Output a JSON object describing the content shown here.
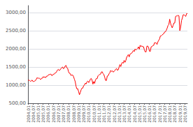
{
  "chart_data": {
    "type": "line",
    "categories": [
      "2004,01",
      null,
      null,
      null,
      null,
      null,
      "2004,07",
      null,
      null,
      null,
      null,
      null,
      "2005,01",
      null,
      null,
      null,
      null,
      null,
      "2005,07",
      null,
      null,
      null,
      null,
      null,
      "2006,01",
      null,
      null,
      null,
      null,
      null,
      "2006,07",
      null,
      null,
      null,
      null,
      null,
      "2007,01",
      null,
      null,
      null,
      null,
      null,
      "2007,07",
      null,
      null,
      null,
      null,
      null,
      "2008,01",
      null,
      null,
      null,
      null,
      null,
      "2008,07",
      null,
      null,
      null,
      null,
      null,
      "2009,01",
      null,
      null,
      null,
      null,
      null,
      "2009,07",
      null,
      null,
      null,
      null,
      null,
      "2010,01",
      null,
      null,
      null,
      null,
      null,
      "2010,07",
      null,
      null,
      null,
      null,
      null,
      "2011,01",
      null,
      null,
      null,
      null,
      null,
      "2011,07",
      null,
      null,
      null,
      null,
      null,
      "2012,01",
      null,
      null,
      null,
      null,
      null,
      "2012,07",
      null,
      null,
      null,
      null,
      null,
      "2013,01",
      null,
      null,
      null,
      null,
      null,
      "2013,07",
      null,
      null,
      null,
      null,
      null,
      "2014,01",
      null,
      null,
      null,
      null,
      null,
      "2014,07",
      null,
      null,
      null,
      null,
      null,
      "2015,01",
      null,
      null,
      null,
      null,
      null,
      "2015,07",
      null,
      null,
      null,
      null,
      null,
      "2016,01",
      null,
      null,
      null,
      null,
      null,
      "2016,07",
      null,
      null,
      null,
      null,
      null,
      "2017,01",
      null,
      null,
      null,
      null,
      null,
      "2017,07",
      null,
      null,
      null,
      null,
      null,
      "2018,01",
      null,
      null,
      null,
      null,
      null,
      "2018,07",
      null,
      null,
      null,
      null,
      null,
      "2019,01",
      null,
      null,
      null,
      null,
      null,
      "2019,07",
      null,
      null,
      null
    ],
    "values": [
      1132,
      1140,
      1126,
      1107,
      1120,
      1141,
      1101,
      1104,
      1114,
      1130,
      1173,
      1212,
      1181,
      1203,
      1180,
      1156,
      1191,
      1191,
      1234,
      1220,
      1228,
      1207,
      1249,
      1248,
      1280,
      1294,
      1294,
      1310,
      1270,
      1270,
      1303,
      1303,
      1336,
      1340,
      1377,
      1418,
      1438,
      1406,
      1420,
      1459,
      1482,
      1503,
      1455,
      1473,
      1526,
      1549,
      1481,
      1468,
      1378,
      1330,
      1323,
      1268,
      1280,
      1280,
      1238,
      1166,
      1099,
      968,
      896,
      903,
      825,
      735,
      797,
      872,
      919,
      919,
      987,
      1003,
      1057,
      1036,
      1095,
      1115,
      1073,
      1104,
      1169,
      1187,
      1136,
      1030,
      1101,
      1049,
      1141,
      1183,
      1180,
      1258,
      1282,
      1294,
      1304,
      1363,
      1370,
      1320,
      1292,
      1218,
      1132,
      1131,
      1253,
      1258,
      1312,
      1343,
      1408,
      1379,
      1397,
      1362,
      1380,
      1403,
      1440,
      1461,
      1411,
      1426,
      1498,
      1569,
      1514,
      1597,
      1631,
      1606,
      1685,
      1632,
      1682,
      1772,
      1807,
      1848,
      1782,
      1859,
      1872,
      1884,
      1924,
      1960,
      1930,
      2003,
      1972,
      1994,
      2018,
      2059,
      1995,
      2104,
      2068,
      2086,
      2063,
      2063,
      1972,
      1921,
      1920,
      2080,
      2080,
      2044,
      1940,
      1932,
      2060,
      2066,
      2096,
      2099,
      2174,
      2170,
      2168,
      2126,
      2198,
      2239,
      2279,
      2364,
      2363,
      2384,
      2411,
      2423,
      2470,
      2476,
      2519,
      2575,
      2648,
      2674,
      2824,
      2713,
      2640,
      2584,
      2648,
      2718,
      2718,
      2901,
      2914,
      2914,
      2930,
      2914,
      2507,
      2607,
      2784,
      2854,
      2946,
      2945,
      2926,
      2900,
      2976,
      2980
    ],
    "color": "#ff0000",
    "ylim": [
      500,
      3200
    ],
    "yticks": [
      {
        "value": 500,
        "label": "500,00"
      },
      {
        "value": 1000,
        "label": "1000,00"
      },
      {
        "value": 1500,
        "label": "1500,00"
      },
      {
        "value": 2000,
        "label": "2000,00"
      },
      {
        "value": 2500,
        "label": "2500,00"
      },
      {
        "value": 3000,
        "label": "3000,00"
      }
    ],
    "grid": true
  }
}
